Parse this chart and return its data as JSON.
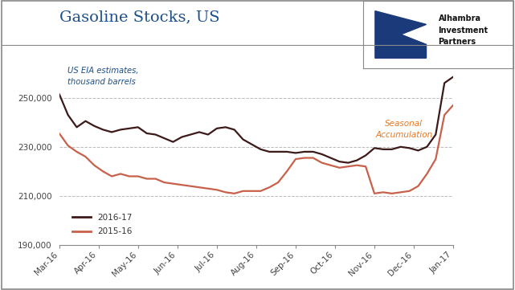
{
  "title": "Gasoline Stocks, US",
  "subtitle": "US EIA estimates,\nthousand barrels",
  "annotation": "Seasonal\nAccumulation",
  "annotation_color": "#E87722",
  "title_color": "#1B4F8A",
  "subtitle_color": "#1B4F8A",
  "background_color": "#FFFFFF",
  "plot_bg_color": "#FFFFFF",
  "line1_color": "#3D1A1A",
  "line2_color": "#C8614A",
  "line1_label": "2016-17",
  "line2_label": "2015-16",
  "ylim": [
    190000,
    265000
  ],
  "yticks": [
    190000,
    210000,
    230000,
    250000
  ],
  "ytick_labels": [
    "190,000",
    "210,000",
    "230,000",
    "250,000"
  ],
  "xtick_labels": [
    "Mar-16",
    "Apr-16",
    "May-16",
    "Jun-16",
    "Jul-16",
    "Aug-16",
    "Sep-16",
    "Oct-16",
    "Nov-16",
    "Dec-16",
    "Jan-17"
  ],
  "line1_data": [
    251500,
    243000,
    238000,
    240500,
    238500,
    237000,
    236000,
    237000,
    237500,
    238000,
    235500,
    235000,
    233500,
    232000,
    234000,
    235000,
    236000,
    235000,
    237500,
    238000,
    237000,
    233000,
    231000,
    229000,
    228000,
    228000,
    228000,
    227500,
    228000,
    228000,
    227000,
    225500,
    224000,
    223500,
    224500,
    226500,
    229500,
    229000,
    229000,
    230000,
    229500,
    228500,
    230000,
    235000,
    256000,
    258500
  ],
  "line2_data": [
    235500,
    230500,
    228000,
    226000,
    222500,
    220000,
    218000,
    219000,
    218000,
    218000,
    217000,
    217000,
    215500,
    215000,
    214500,
    214000,
    213500,
    213000,
    212500,
    211500,
    211000,
    212000,
    212000,
    212000,
    213500,
    215500,
    220000,
    225000,
    225500,
    225500,
    223500,
    222500,
    221500,
    222000,
    222500,
    222000,
    211000,
    211500,
    211000,
    211500,
    212000,
    214000,
    219000,
    225000,
    243000,
    247000
  ],
  "n_points": 46,
  "logo_text": "Alhambra\nInvestment\nPartners",
  "logo_color": "#1B3A7A",
  "grid_color": "#BBBBBB",
  "spine_color": "#888888"
}
